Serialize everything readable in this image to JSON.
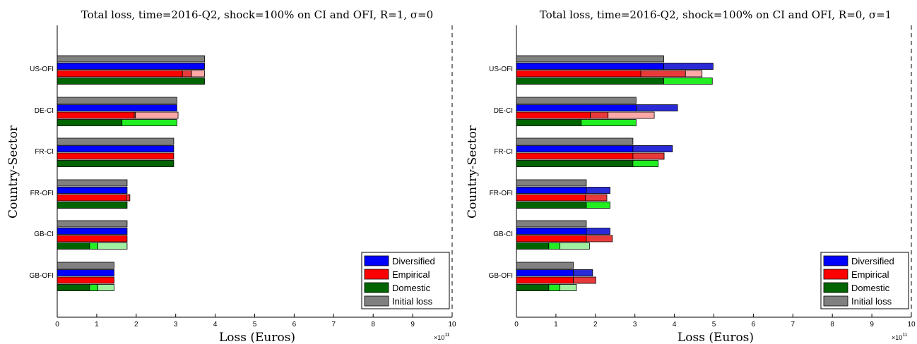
{
  "ylabel": "Country-Sector",
  "multiplier_base": "×10",
  "multiplier_exp": "11",
  "chart_data": [
    {
      "type": "bar",
      "title": "Total loss, time=2016-Q2, shock=100% on CI and OFI, R=1, σ=0",
      "xlabel": "Loss (Euros)",
      "xlim": [
        0,
        10
      ],
      "xticks": [
        "0",
        "1",
        "2",
        "3",
        "4",
        "5",
        "6",
        "7",
        "8",
        "9",
        "10"
      ],
      "categories": [
        "US-OFI",
        "DE-CI",
        "FR-CI",
        "FR-OFI",
        "GB-CI",
        "GB-OFI"
      ],
      "series": [
        {
          "name": "Initial loss",
          "values": [
            3.73,
            3.03,
            2.95,
            1.77,
            1.77,
            1.44
          ]
        },
        {
          "name": "Diversified",
          "values": [
            3.73,
            3.03,
            2.95,
            1.77,
            1.77,
            1.44
          ],
          "segments": [
            [
              3.73
            ],
            [
              3.03
            ],
            [
              2.95
            ],
            [
              1.77
            ],
            [
              1.77
            ],
            [
              1.44
            ]
          ]
        },
        {
          "name": "Empirical",
          "values": [
            3.73,
            3.06,
            2.95,
            1.84,
            1.77,
            1.44
          ],
          "segments": [
            [
              3.17,
              3.4,
              3.73
            ],
            [
              1.95,
              1.98,
              3.06
            ],
            [
              2.95
            ],
            [
              1.75,
              1.84
            ],
            [
              1.77
            ],
            [
              1.44
            ]
          ]
        },
        {
          "name": "Domestic",
          "values": [
            3.73,
            3.03,
            2.95,
            1.77,
            1.77,
            1.44
          ],
          "segments": [
            [
              3.73
            ],
            [
              1.64,
              3.03
            ],
            [
              2.95
            ],
            [
              1.77
            ],
            [
              0.82,
              1.03,
              1.77
            ],
            [
              0.82,
              1.03,
              1.44
            ]
          ]
        }
      ],
      "legend": {
        "entries": [
          "Diversified",
          "Empirical",
          "Domestic",
          "Initial loss"
        ],
        "location": "bottom-right"
      },
      "grid": false
    },
    {
      "type": "bar",
      "title": "Total loss, time=2016-Q2, shock=100% on CI and OFI, R=0, σ=1",
      "xlabel": "Loss (Euros)",
      "xlim": [
        0,
        10
      ],
      "xticks": [
        "0",
        "1",
        "2",
        "3",
        "4",
        "5",
        "6",
        "7",
        "8",
        "9",
        "10"
      ],
      "categories": [
        "US-OFI",
        "DE-CI",
        "FR-CI",
        "FR-OFI",
        "GB-CI",
        "GB-OFI"
      ],
      "series": [
        {
          "name": "Initial loss",
          "values": [
            3.73,
            3.03,
            2.95,
            1.77,
            1.77,
            1.44
          ]
        },
        {
          "name": "Diversified",
          "values": [
            4.98,
            4.08,
            3.95,
            2.37,
            2.37,
            1.93
          ],
          "segments": [
            [
              3.73,
              4.98
            ],
            [
              3.03,
              4.08
            ],
            [
              2.95,
              3.95
            ],
            [
              1.77,
              2.37
            ],
            [
              1.77,
              2.37
            ],
            [
              1.44,
              1.93
            ]
          ]
        },
        {
          "name": "Empirical",
          "values": [
            4.7,
            3.49,
            3.74,
            2.29,
            2.43,
            2.01
          ],
          "segments": [
            [
              3.15,
              4.28,
              4.7
            ],
            [
              1.87,
              2.32,
              3.49
            ],
            [
              2.95,
              3.74
            ],
            [
              1.75,
              2.29
            ],
            [
              1.77,
              2.43
            ],
            [
              1.44,
              2.01
            ]
          ]
        },
        {
          "name": "Domestic",
          "values": [
            4.96,
            3.03,
            3.59,
            2.37,
            1.85,
            1.52
          ],
          "segments": [
            [
              3.73,
              4.96
            ],
            [
              1.64,
              3.03
            ],
            [
              2.95,
              3.59
            ],
            [
              1.77,
              2.37
            ],
            [
              0.82,
              1.1,
              1.85
            ],
            [
              0.82,
              1.1,
              1.52
            ]
          ]
        }
      ],
      "legend": {
        "entries": [
          "Diversified",
          "Empirical",
          "Domestic",
          "Initial loss"
        ],
        "location": "bottom-right"
      },
      "grid": false
    }
  ],
  "colors": {
    "Initial loss": [
      "#808080"
    ],
    "Diversified": [
      "#0000ff",
      "#2a2ad6"
    ],
    "Empirical": [
      "#ff0000",
      "#e83a3a",
      "#ffa8a8"
    ],
    "Domestic": [
      "#006400",
      "#22ee22",
      "#a0f0a0"
    ]
  }
}
